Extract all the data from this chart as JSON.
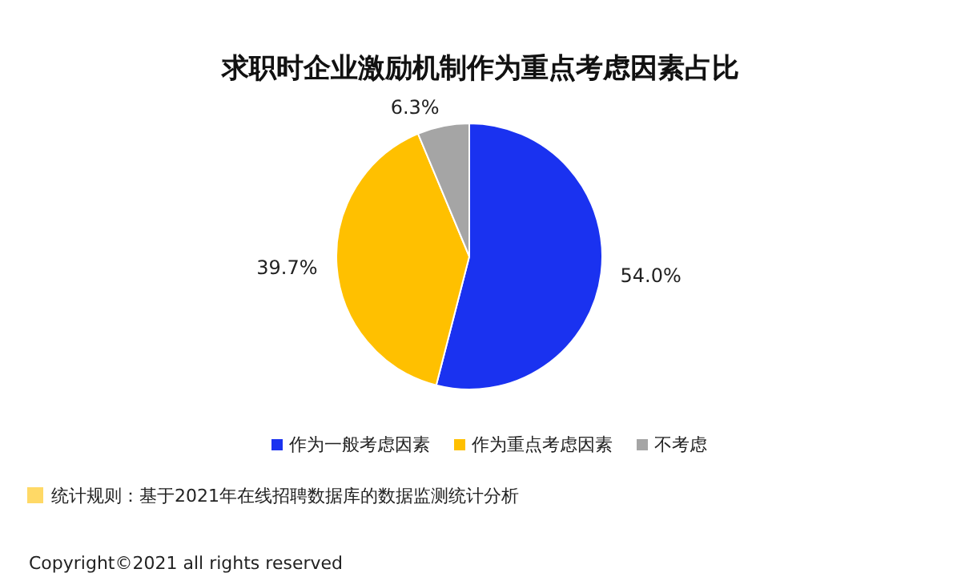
{
  "chart_data": {
    "type": "pie",
    "title": "求职时企业激励机制作为重点考虑因素占比",
    "categories": [
      "作为一般考虑因素",
      "作为重点考虑因素",
      "不考虑"
    ],
    "values": [
      54.0,
      39.7,
      6.3
    ],
    "colors": [
      "#1a32f0",
      "#ffc000",
      "#a5a5a5"
    ],
    "value_labels": [
      "54.0%",
      "39.7%",
      "6.3%"
    ],
    "legend": "bottom",
    "annotations": [
      "统计规则：基于2021年在线招聘数据库的数据监测统计分析",
      "Copyright©2021 all rights reserved"
    ]
  }
}
